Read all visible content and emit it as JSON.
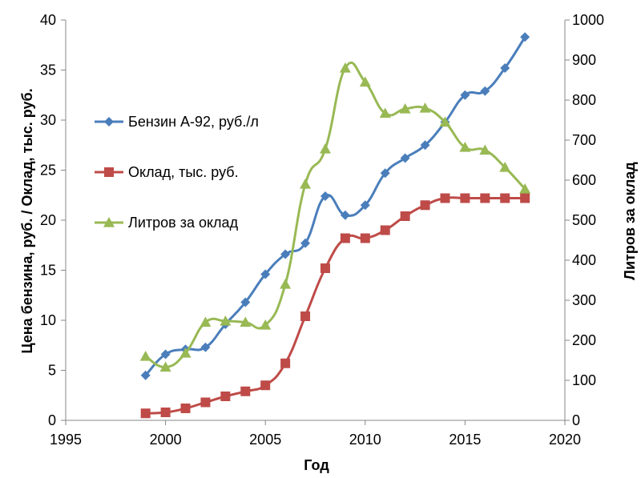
{
  "chart_data": {
    "type": "line",
    "title": "",
    "xlabel": "Год",
    "ylabel": "Цена бензина, руб. / Оклад, тыс. руб.",
    "y2label": "Литров за оклад",
    "xlim": [
      1995,
      2020
    ],
    "ylim": [
      0,
      40
    ],
    "y2lim": [
      0,
      1000
    ],
    "x_ticks": [
      "1995",
      "2000",
      "2005",
      "2010",
      "2015",
      "2020"
    ],
    "y_ticks": [
      "0",
      "5",
      "10",
      "15",
      "20",
      "25",
      "30",
      "35",
      "40"
    ],
    "y2_ticks": [
      "0",
      "100",
      "200",
      "300",
      "400",
      "500",
      "600",
      "700",
      "800",
      "900",
      "1000"
    ],
    "grid": false,
    "legend_position": "left",
    "series": [
      {
        "name": "Бензин А-92, руб./л",
        "axis": "left",
        "color": "#4a7ebb",
        "marker": "diamond",
        "x": [
          1999,
          2000,
          2001,
          2002,
          2003,
          2004,
          2005,
          2006,
          2007,
          2008,
          2009,
          2010,
          2011,
          2012,
          2013,
          2014,
          2015,
          2016,
          2017,
          2018
        ],
        "values": [
          4.5,
          6.6,
          7.1,
          7.3,
          9.6,
          11.8,
          14.6,
          16.6,
          17.7,
          22.4,
          20.5,
          21.5,
          24.7,
          26.2,
          27.5,
          29.8,
          32.5,
          32.9,
          35.2,
          38.3
        ]
      },
      {
        "name": "Оклад, тыс. руб.",
        "axis": "left",
        "color": "#be4b48",
        "marker": "square",
        "x": [
          1999,
          2000,
          2001,
          2002,
          2003,
          2004,
          2005,
          2006,
          2007,
          2008,
          2009,
          2010,
          2011,
          2012,
          2013,
          2014,
          2015,
          2016,
          2017,
          2018
        ],
        "values": [
          0.7,
          0.8,
          1.2,
          1.8,
          2.4,
          2.9,
          3.5,
          5.7,
          10.4,
          15.2,
          18.2,
          18.2,
          19.0,
          20.4,
          21.5,
          22.2,
          22.2,
          22.2,
          22.2,
          22.2
        ]
      },
      {
        "name": "Литров за оклад",
        "axis": "right",
        "color": "#98b954",
        "marker": "triangle",
        "x": [
          1999,
          2000,
          2001,
          2002,
          2003,
          2004,
          2005,
          2006,
          2007,
          2008,
          2009,
          2010,
          2011,
          2012,
          2013,
          2014,
          2015,
          2016,
          2017,
          2018
        ],
        "values": [
          160,
          133,
          168,
          245,
          248,
          245,
          238,
          340,
          590,
          678,
          880,
          845,
          767,
          778,
          780,
          745,
          682,
          675,
          632,
          578
        ]
      }
    ]
  }
}
